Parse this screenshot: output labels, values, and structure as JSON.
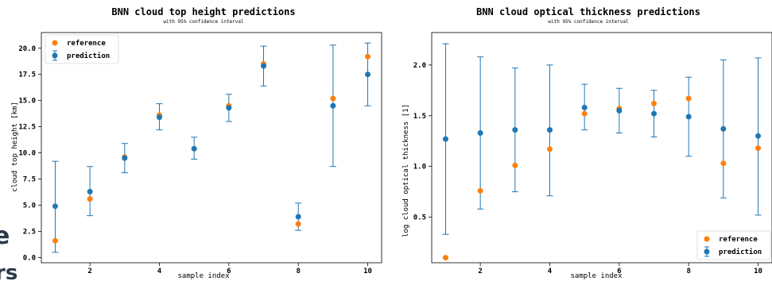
{
  "fragments": [
    "e",
    "rs"
  ],
  "chart_data": [
    {
      "type": "scatter",
      "title": "BNN cloud top height predictions",
      "subtitle": "with 95% confidence interval",
      "xlabel": "sample index",
      "ylabel": "cloud top height [km]",
      "xlim": [
        0.6,
        10.4
      ],
      "ylim": [
        -0.5,
        21.5
      ],
      "xticks": [
        2,
        4,
        6,
        8,
        10
      ],
      "yticks": [
        0.0,
        2.5,
        5.0,
        7.5,
        10.0,
        12.5,
        15.0,
        17.5,
        20.0
      ],
      "ytick_labels": [
        "0.0",
        "2.5",
        "5.0",
        "7.5",
        "10.0",
        "12.5",
        "15.0",
        "17.5",
        "20.0"
      ],
      "legend_position": "top-left",
      "series": [
        {
          "name": "reference",
          "color": "#ff7f0e",
          "x": [
            1,
            2,
            3,
            4,
            5,
            6,
            7,
            8,
            9,
            10
          ],
          "y": [
            1.6,
            5.6,
            9.6,
            13.6,
            10.4,
            14.5,
            18.5,
            3.2,
            15.2,
            19.2
          ]
        },
        {
          "name": "prediction",
          "color": "#1f77b4",
          "x": [
            1,
            2,
            3,
            4,
            5,
            6,
            7,
            8,
            9,
            10
          ],
          "y": [
            4.9,
            6.3,
            9.5,
            13.4,
            10.4,
            14.3,
            18.3,
            3.9,
            14.5,
            17.5
          ],
          "err_low": [
            0.5,
            4.0,
            8.1,
            12.2,
            9.4,
            13.0,
            16.4,
            2.6,
            8.7,
            14.5
          ],
          "err_high": [
            9.2,
            8.7,
            10.9,
            14.7,
            11.5,
            15.6,
            20.2,
            5.2,
            20.3,
            20.5
          ]
        }
      ]
    },
    {
      "type": "scatter",
      "title": "BNN cloud optical thickness predictions",
      "subtitle": "with 95% confidence interval",
      "xlabel": "sample index",
      "ylabel": "log cloud optical thickness [1]",
      "xlim": [
        0.6,
        10.4
      ],
      "ylim": [
        0.05,
        2.32
      ],
      "xticks": [
        2,
        4,
        6,
        8,
        10
      ],
      "yticks": [
        0.5,
        1.0,
        1.5,
        2.0
      ],
      "ytick_labels": [
        "0.5",
        "1.0",
        "1.5",
        "2.0"
      ],
      "legend_position": "bottom-right",
      "series": [
        {
          "name": "reference",
          "color": "#ff7f0e",
          "x": [
            1,
            2,
            3,
            4,
            5,
            6,
            7,
            8,
            9,
            10
          ],
          "y": [
            0.1,
            0.76,
            1.01,
            1.17,
            1.52,
            1.57,
            1.62,
            1.67,
            1.03,
            1.18
          ]
        },
        {
          "name": "prediction",
          "color": "#1f77b4",
          "x": [
            1,
            2,
            3,
            4,
            5,
            6,
            7,
            8,
            9,
            10
          ],
          "y": [
            1.27,
            1.33,
            1.36,
            1.36,
            1.58,
            1.55,
            1.52,
            1.49,
            1.37,
            1.3
          ],
          "err_low": [
            0.33,
            0.58,
            0.75,
            0.71,
            1.36,
            1.33,
            1.29,
            1.1,
            0.69,
            0.52
          ],
          "err_high": [
            2.21,
            2.08,
            1.97,
            2.0,
            1.81,
            1.77,
            1.75,
            1.88,
            2.05,
            2.07
          ]
        }
      ]
    }
  ]
}
